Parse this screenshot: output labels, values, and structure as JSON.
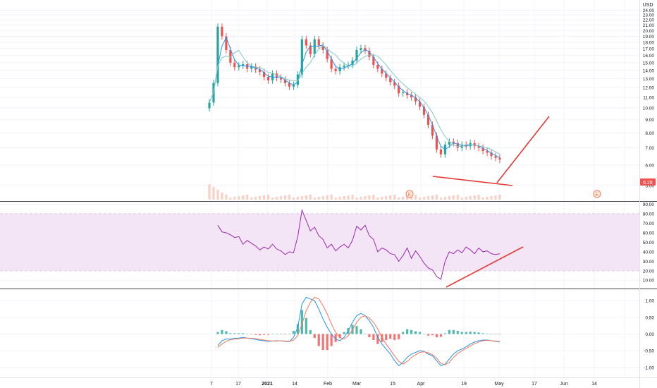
{
  "colors": {
    "up": "#26a69a",
    "down": "#ef5350",
    "ma_fast": "#2196f3",
    "ma_slow": "#80cbc4",
    "rsi_line": "#9c27b0",
    "rsi_band": "#f3e5f5",
    "macd_line": "#2196f3",
    "signal_line": "#f4775e",
    "hist_up": "#26a69a",
    "hist_down": "#ef5350",
    "volume": "#f8bbad",
    "trendline": "#e53935",
    "grid": "#f0f3fa",
    "price_badge": "#ef5350"
  },
  "price_panel": {
    "currency": "USD",
    "last_price": "6.28",
    "earnings_marker": "E"
  },
  "chart_data": [
    {
      "type": "candlestick",
      "title": "",
      "x": [
        "Jan 7",
        "Jan 8",
        "Jan 11",
        "Jan 12",
        "Jan 13",
        "Jan 14",
        "Jan 15",
        "Jan 19",
        "Jan 20",
        "Jan 21",
        "Jan 22",
        "Jan 25",
        "Jan 26",
        "Jan 27",
        "Jan 28",
        "Jan 29",
        "Feb 1",
        "Feb 2",
        "Feb 3",
        "Feb 4",
        "Feb 5",
        "Feb 8",
        "Feb 9",
        "Feb 10",
        "Feb 11",
        "Feb 12",
        "Feb 16",
        "Feb 17",
        "Feb 18",
        "Feb 19",
        "Feb 22",
        "Feb 23",
        "Feb 24",
        "Feb 25",
        "Feb 26",
        "Mar 1",
        "Mar 2",
        "Mar 3",
        "Mar 4",
        "Mar 5",
        "Mar 8",
        "Mar 9",
        "Mar 10",
        "Mar 11",
        "Mar 12",
        "Mar 15",
        "Mar 16",
        "Mar 17",
        "Mar 18",
        "Mar 19",
        "Mar 22",
        "Mar 23",
        "Mar 24",
        "Mar 25",
        "Mar 26",
        "Mar 29",
        "Mar 30",
        "Mar 31",
        "Apr 1",
        "Apr 5",
        "Apr 6",
        "Apr 7",
        "Apr 8",
        "Apr 9",
        "Apr 12",
        "Apr 13",
        "Apr 14",
        "Apr 15",
        "Apr 16",
        "Apr 19"
      ],
      "close": [
        10.5,
        12.5,
        20.7,
        19.0,
        16.8,
        15.0,
        14.4,
        14.6,
        14.8,
        14.2,
        14.5,
        14.1,
        13.8,
        13.2,
        12.8,
        13.6,
        13.1,
        12.9,
        12.5,
        12.1,
        12.3,
        13.5,
        18.5,
        17.5,
        16.2,
        18.5,
        17.5,
        16.8,
        15.5,
        14.2,
        13.9,
        14.4,
        14.6,
        14.7,
        15.3,
        16.8,
        17.1,
        16.7,
        15.8,
        14.7,
        14.2,
        13.6,
        13.1,
        12.6,
        12.2,
        11.4,
        11.5,
        11.2,
        11.0,
        10.6,
        10.1,
        9.4,
        8.6,
        7.8,
        6.9,
        6.6,
        7.2,
        7.4,
        7.3,
        7.0,
        7.2,
        7.1,
        7.3,
        7.1,
        7.0,
        6.8,
        6.7,
        6.5,
        6.4,
        6.3
      ],
      "volume_note": "volume bars shown at bottom of price panel",
      "y_ticks": [
        "5.00",
        "6.00",
        "7.00",
        "8.00",
        "9.00",
        "10.00",
        "11.00",
        "12.00",
        "13.00",
        "14.00",
        "15.00",
        "16.00",
        "17.00",
        "18.00",
        "19.00",
        "20.00",
        "21.00",
        "22.00",
        "23.00",
        "24.00"
      ],
      "ylim": [
        4.4,
        25
      ],
      "log_scale": true,
      "x_tick_labels": [
        "7",
        "17",
        "2021",
        "14",
        "Feb",
        "Mar",
        "15",
        "Apr",
        "19",
        "May",
        "17",
        "Jun",
        "14"
      ],
      "annotations": [
        "support trendline",
        "breakout arrow"
      ]
    },
    {
      "type": "line",
      "name": "",
      "y_ticks": [
        "10.00",
        "20.00",
        "30.00",
        "40.00",
        "50.00",
        "60.00",
        "70.00",
        "80.00",
        "90.00"
      ],
      "ylim": [
        2,
        92
      ],
      "band": [
        20,
        80
      ],
      "x": [
        "Jan 11",
        "Jan 12",
        "Jan 13",
        "Jan 14",
        "Jan 15",
        "Jan 19",
        "Jan 20",
        "Jan 21",
        "Jan 22",
        "Jan 25",
        "Jan 26",
        "Jan 27",
        "Jan 28",
        "Jan 29",
        "Feb 1",
        "Feb 2",
        "Feb 3",
        "Feb 4",
        "Feb 5",
        "Feb 8",
        "Feb 9",
        "Feb 10",
        "Feb 11",
        "Feb 12",
        "Feb 16",
        "Feb 17",
        "Feb 18",
        "Feb 19",
        "Feb 22",
        "Feb 23",
        "Feb 24",
        "Feb 25",
        "Feb 26",
        "Mar 1",
        "Mar 2",
        "Mar 3",
        "Mar 4",
        "Mar 5",
        "Mar 8",
        "Mar 9",
        "Mar 10",
        "Mar 11",
        "Mar 12",
        "Mar 15",
        "Mar 16",
        "Mar 17",
        "Mar 18",
        "Mar 19",
        "Mar 22",
        "Mar 23",
        "Mar 24",
        "Mar 25",
        "Mar 26",
        "Mar 29",
        "Mar 30",
        "Mar 31",
        "Apr 1",
        "Apr 5",
        "Apr 6",
        "Apr 7",
        "Apr 8",
        "Apr 9",
        "Apr 12",
        "Apr 13",
        "Apr 14",
        "Apr 15",
        "Apr 16",
        "Apr 19"
      ],
      "values": [
        68,
        61,
        60,
        58,
        55,
        56,
        48,
        52,
        49,
        46,
        42,
        45,
        43,
        48,
        43,
        41,
        37,
        40,
        39,
        56,
        84,
        73,
        62,
        66,
        57,
        53,
        44,
        48,
        41,
        45,
        48,
        44,
        52,
        67,
        63,
        68,
        57,
        53,
        40,
        44,
        42,
        38,
        37,
        30,
        36,
        44,
        33,
        41,
        35,
        28,
        23,
        21,
        14,
        11,
        30,
        40,
        38,
        42,
        39,
        45,
        42,
        38,
        44,
        40,
        41,
        38,
        37,
        38
      ],
      "annotations": [
        "rising trendline"
      ]
    },
    {
      "type": "line",
      "name": "",
      "y_ticks": [
        "1.00",
        "0.50",
        "0.00",
        "-0.50",
        "-1.00"
      ],
      "ylim": [
        -1.3,
        1.3
      ],
      "x": [
        "Jan 11",
        "Jan 12",
        "Jan 13",
        "Jan 14",
        "Jan 15",
        "Jan 19",
        "Jan 20",
        "Jan 21",
        "Jan 22",
        "Jan 25",
        "Jan 26",
        "Jan 27",
        "Jan 28",
        "Jan 29",
        "Feb 1",
        "Feb 2",
        "Feb 3",
        "Feb 4",
        "Feb 5",
        "Feb 8",
        "Feb 9",
        "Feb 10",
        "Feb 11",
        "Feb 12",
        "Feb 16",
        "Feb 17",
        "Feb 18",
        "Feb 19",
        "Feb 22",
        "Feb 23",
        "Feb 24",
        "Feb 25",
        "Feb 26",
        "Mar 1",
        "Mar 2",
        "Mar 3",
        "Mar 4",
        "Mar 5",
        "Mar 8",
        "Mar 9",
        "Mar 10",
        "Mar 11",
        "Mar 12",
        "Mar 15",
        "Mar 16",
        "Mar 17",
        "Mar 18",
        "Mar 19",
        "Mar 22",
        "Mar 23",
        "Mar 24",
        "Mar 25",
        "Mar 26",
        "Mar 29",
        "Mar 30",
        "Mar 31",
        "Apr 1",
        "Apr 5",
        "Apr 6",
        "Apr 7",
        "Apr 8",
        "Apr 9",
        "Apr 12",
        "Apr 13",
        "Apr 14",
        "Apr 15",
        "Apr 16",
        "Apr 19"
      ],
      "series": [
        {
          "values": [
            -0.35,
            -0.2,
            -0.15,
            -0.15,
            -0.13,
            -0.12,
            -0.1,
            -0.12,
            -0.14,
            -0.16,
            -0.19,
            -0.2,
            -0.22,
            -0.21,
            -0.2,
            -0.2,
            -0.22,
            -0.23,
            -0.1,
            0.2,
            0.9,
            1.1,
            1.05,
            1.0,
            0.75,
            0.45,
            0.2,
            0.0,
            -0.15,
            -0.2,
            -0.1,
            0.1,
            0.35,
            0.55,
            0.62,
            0.55,
            0.4,
            0.2,
            -0.1,
            -0.3,
            -0.45,
            -0.6,
            -0.8,
            -0.95,
            -0.85,
            -0.7,
            -0.6,
            -0.55,
            -0.5,
            -0.52,
            -0.6,
            -0.65,
            -0.8,
            -0.95,
            -0.9,
            -0.75,
            -0.6,
            -0.5,
            -0.45,
            -0.38,
            -0.3,
            -0.24,
            -0.2,
            -0.18,
            -0.18,
            -0.2,
            -0.22,
            -0.24
          ]
        },
        {
          "values": [
            -0.4,
            -0.3,
            -0.22,
            -0.17,
            -0.15,
            -0.14,
            -0.12,
            -0.12,
            -0.13,
            -0.14,
            -0.16,
            -0.18,
            -0.2,
            -0.21,
            -0.21,
            -0.2,
            -0.21,
            -0.22,
            -0.18,
            -0.05,
            0.3,
            0.7,
            0.95,
            1.1,
            1.05,
            0.85,
            0.6,
            0.3,
            0.05,
            -0.1,
            -0.15,
            -0.05,
            0.12,
            0.35,
            0.5,
            0.55,
            0.48,
            0.35,
            0.15,
            -0.1,
            -0.3,
            -0.48,
            -0.65,
            -0.82,
            -0.9,
            -0.82,
            -0.7,
            -0.62,
            -0.55,
            -0.53,
            -0.56,
            -0.62,
            -0.72,
            -0.88,
            -0.92,
            -0.85,
            -0.7,
            -0.58,
            -0.5,
            -0.43,
            -0.36,
            -0.29,
            -0.24,
            -0.2,
            -0.19,
            -0.2,
            -0.21,
            -0.23
          ]
        }
      ]
    }
  ]
}
